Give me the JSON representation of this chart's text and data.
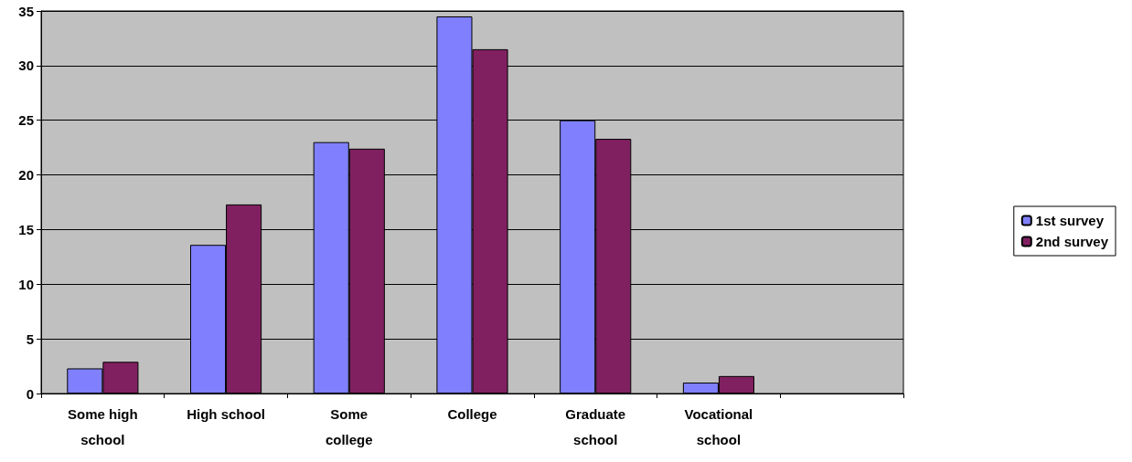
{
  "chart_data": {
    "type": "bar",
    "categories": [
      "Some high\nschool",
      "High school",
      "Some\ncollege",
      "College",
      "Graduate\nschool",
      "Vocational\nschool",
      null
    ],
    "series": [
      {
        "name": "1st survey",
        "color": "#8080ff",
        "values": [
          2.3,
          13.6,
          23.0,
          34.5,
          25.0,
          1.0,
          null
        ]
      },
      {
        "name": "2nd survey",
        "color": "#802060",
        "values": [
          2.9,
          17.3,
          22.4,
          31.5,
          23.3,
          1.6,
          null
        ]
      }
    ],
    "ylim": [
      0,
      35
    ],
    "yticks": [
      0,
      5,
      10,
      15,
      20,
      25,
      30,
      35
    ],
    "grid": "y",
    "legend": "right"
  }
}
